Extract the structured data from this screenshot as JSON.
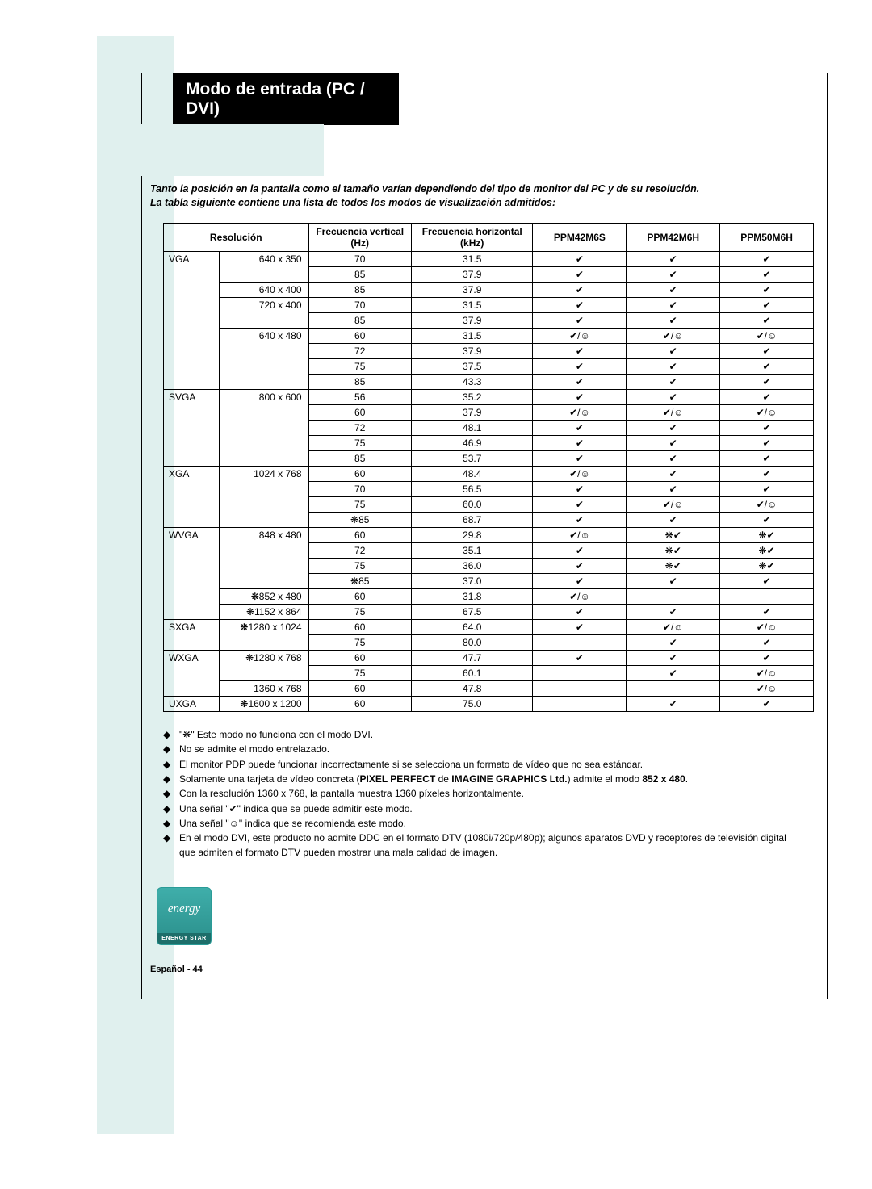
{
  "title": "Modo de entrada (PC / DVI)",
  "intro_line1": "Tanto la posición en la pantalla como el tamaño varían dependiendo del tipo de monitor del PC y de su resolución.",
  "intro_line2": "La tabla siguiente contiene una lista de todos los modos de visualización admitidos:",
  "headers": {
    "resolucion": "Resolución",
    "freq_v": "Frecuencia vertical (Hz)",
    "freq_h": "Frecuencia horizontal (kHz)",
    "m1": "PPM42M6S",
    "m2": "PPM42M6H",
    "m3": "PPM50M6H"
  },
  "symbols": {
    "check": "✔",
    "smile": "☺",
    "snow": "❋",
    "cs": "✔/☺",
    "sc": "❋✔"
  },
  "rows": [
    {
      "cat": "VGA",
      "res": "640 x 350",
      "fv": "70",
      "fh": "31.5",
      "c1": "✔",
      "c2": "✔",
      "c3": "✔",
      "catEnd": 0,
      "resEnd": 0
    },
    {
      "cat": "",
      "res": "",
      "fv": "85",
      "fh": "37.9",
      "c1": "✔",
      "c2": "✔",
      "c3": "✔",
      "catEnd": 0,
      "resEnd": 1
    },
    {
      "cat": "",
      "res": "640 x 400",
      "fv": "85",
      "fh": "37.9",
      "c1": "✔",
      "c2": "✔",
      "c3": "✔",
      "catEnd": 0,
      "resEnd": 1
    },
    {
      "cat": "",
      "res": "720 x 400",
      "fv": "70",
      "fh": "31.5",
      "c1": "✔",
      "c2": "✔",
      "c3": "✔",
      "catEnd": 0,
      "resEnd": 0
    },
    {
      "cat": "",
      "res": "",
      "fv": "85",
      "fh": "37.9",
      "c1": "✔",
      "c2": "✔",
      "c3": "✔",
      "catEnd": 0,
      "resEnd": 1
    },
    {
      "cat": "",
      "res": "640 x 480",
      "fv": "60",
      "fh": "31.5",
      "c1": "✔/☺",
      "c2": "✔/☺",
      "c3": "✔/☺",
      "catEnd": 0,
      "resEnd": 0
    },
    {
      "cat": "",
      "res": "",
      "fv": "72",
      "fh": "37.9",
      "c1": "✔",
      "c2": "✔",
      "c3": "✔",
      "catEnd": 0,
      "resEnd": 0
    },
    {
      "cat": "",
      "res": "",
      "fv": "75",
      "fh": "37.5",
      "c1": "✔",
      "c2": "✔",
      "c3": "✔",
      "catEnd": 0,
      "resEnd": 0
    },
    {
      "cat": "",
      "res": "",
      "fv": "85",
      "fh": "43.3",
      "c1": "✔",
      "c2": "✔",
      "c3": "✔",
      "catEnd": 1,
      "resEnd": 1
    },
    {
      "cat": "SVGA",
      "res": "800 x 600",
      "fv": "56",
      "fh": "35.2",
      "c1": "✔",
      "c2": "✔",
      "c3": "✔",
      "catEnd": 0,
      "resEnd": 0
    },
    {
      "cat": "",
      "res": "",
      "fv": "60",
      "fh": "37.9",
      "c1": "✔/☺",
      "c2": "✔/☺",
      "c3": "✔/☺",
      "catEnd": 0,
      "resEnd": 0
    },
    {
      "cat": "",
      "res": "",
      "fv": "72",
      "fh": "48.1",
      "c1": "✔",
      "c2": "✔",
      "c3": "✔",
      "catEnd": 0,
      "resEnd": 0
    },
    {
      "cat": "",
      "res": "",
      "fv": "75",
      "fh": "46.9",
      "c1": "✔",
      "c2": "✔",
      "c3": "✔",
      "catEnd": 0,
      "resEnd": 0
    },
    {
      "cat": "",
      "res": "",
      "fv": "85",
      "fh": "53.7",
      "c1": "✔",
      "c2": "✔",
      "c3": "✔",
      "catEnd": 1,
      "resEnd": 1
    },
    {
      "cat": "XGA",
      "res": "1024 x 768",
      "fv": "60",
      "fh": "48.4",
      "c1": "✔/☺",
      "c2": "✔",
      "c3": "✔",
      "catEnd": 0,
      "resEnd": 0
    },
    {
      "cat": "",
      "res": "",
      "fv": "70",
      "fh": "56.5",
      "c1": "✔",
      "c2": "✔",
      "c3": "✔",
      "catEnd": 0,
      "resEnd": 0
    },
    {
      "cat": "",
      "res": "",
      "fv": "75",
      "fh": "60.0",
      "c1": "✔",
      "c2": "✔/☺",
      "c3": "✔/☺",
      "catEnd": 0,
      "resEnd": 0
    },
    {
      "cat": "",
      "res": "",
      "fv": "❋85",
      "fh": "68.7",
      "c1": "✔",
      "c2": "✔",
      "c3": "✔",
      "catEnd": 1,
      "resEnd": 1
    },
    {
      "cat": "WVGA",
      "res": "848 x 480",
      "fv": "60",
      "fh": "29.8",
      "c1": "✔/☺",
      "c2": "❋✔",
      "c3": "❋✔",
      "catEnd": 0,
      "resEnd": 0
    },
    {
      "cat": "",
      "res": "",
      "fv": "72",
      "fh": "35.1",
      "c1": "✔",
      "c2": "❋✔",
      "c3": "❋✔",
      "catEnd": 0,
      "resEnd": 0
    },
    {
      "cat": "",
      "res": "",
      "fv": "75",
      "fh": "36.0",
      "c1": "✔",
      "c2": "❋✔",
      "c3": "❋✔",
      "catEnd": 0,
      "resEnd": 0
    },
    {
      "cat": "",
      "res": "",
      "fv": "❋85",
      "fh": "37.0",
      "c1": "✔",
      "c2": "✔",
      "c3": "✔",
      "catEnd": 0,
      "resEnd": 1
    },
    {
      "cat": "",
      "res": "❋852 x 480",
      "fv": "60",
      "fh": "31.8",
      "c1": "✔/☺",
      "c2": "",
      "c3": "",
      "catEnd": 0,
      "resEnd": 1
    },
    {
      "cat": "",
      "res": "❋1152 x 864",
      "fv": "75",
      "fh": "67.5",
      "c1": "✔",
      "c2": "✔",
      "c3": "✔",
      "catEnd": 1,
      "resEnd": 1
    },
    {
      "cat": "SXGA",
      "res": "❋1280 x 1024",
      "fv": "60",
      "fh": "64.0",
      "c1": "✔",
      "c2": "✔/☺",
      "c3": "✔/☺",
      "catEnd": 0,
      "resEnd": 0
    },
    {
      "cat": "",
      "res": "",
      "fv": "75",
      "fh": "80.0",
      "c1": "",
      "c2": "✔",
      "c3": "✔",
      "catEnd": 1,
      "resEnd": 1
    },
    {
      "cat": "WXGA",
      "res": "❋1280 x 768",
      "fv": "60",
      "fh": "47.7",
      "c1": "✔",
      "c2": "✔",
      "c3": "✔",
      "catEnd": 0,
      "resEnd": 0
    },
    {
      "cat": "",
      "res": "",
      "fv": "75",
      "fh": "60.1",
      "c1": "",
      "c2": "✔",
      "c3": "✔/☺",
      "catEnd": 0,
      "resEnd": 1
    },
    {
      "cat": "",
      "res": "1360 x 768",
      "fv": "60",
      "fh": "47.8",
      "c1": "",
      "c2": "",
      "c3": "✔/☺",
      "catEnd": 1,
      "resEnd": 1
    },
    {
      "cat": "UXGA",
      "res": "❋1600 x 1200",
      "fv": "60",
      "fh": "75.0",
      "c1": "",
      "c2": "✔",
      "c3": "✔",
      "catEnd": 1,
      "resEnd": 1
    }
  ],
  "notes": [
    "\"❋\" Este modo no funciona con el modo DVI.",
    "No se admite el modo entrelazado.",
    "El monitor PDP puede funcionar incorrectamente si se selecciona un formato de vídeo que no sea estándar.",
    "Solamente una tarjeta de vídeo concreta (<b>PIXEL PERFECT</b> de <b>IMAGINE GRAPHICS Ltd.</b>) admite el modo <b>852 x 480</b>.",
    "Con la resolución 1360 x 768, la pantalla muestra 1360 píxeles horizontalmente.",
    "Una señal \"✔\" indica que se puede admitir este modo.",
    "Una señal \"☺\" indica que se recomienda este modo.",
    "En el modo DVI, este producto no admite DDC en el formato DTV (1080i/720p/480p); algunos aparatos DVD y receptores de televisión digital que admiten el formato DTV pueden mostrar una mala calidad de imagen."
  ],
  "energy": {
    "word": "energy",
    "label": "ENERGY STAR"
  },
  "footer": "Español - 44"
}
